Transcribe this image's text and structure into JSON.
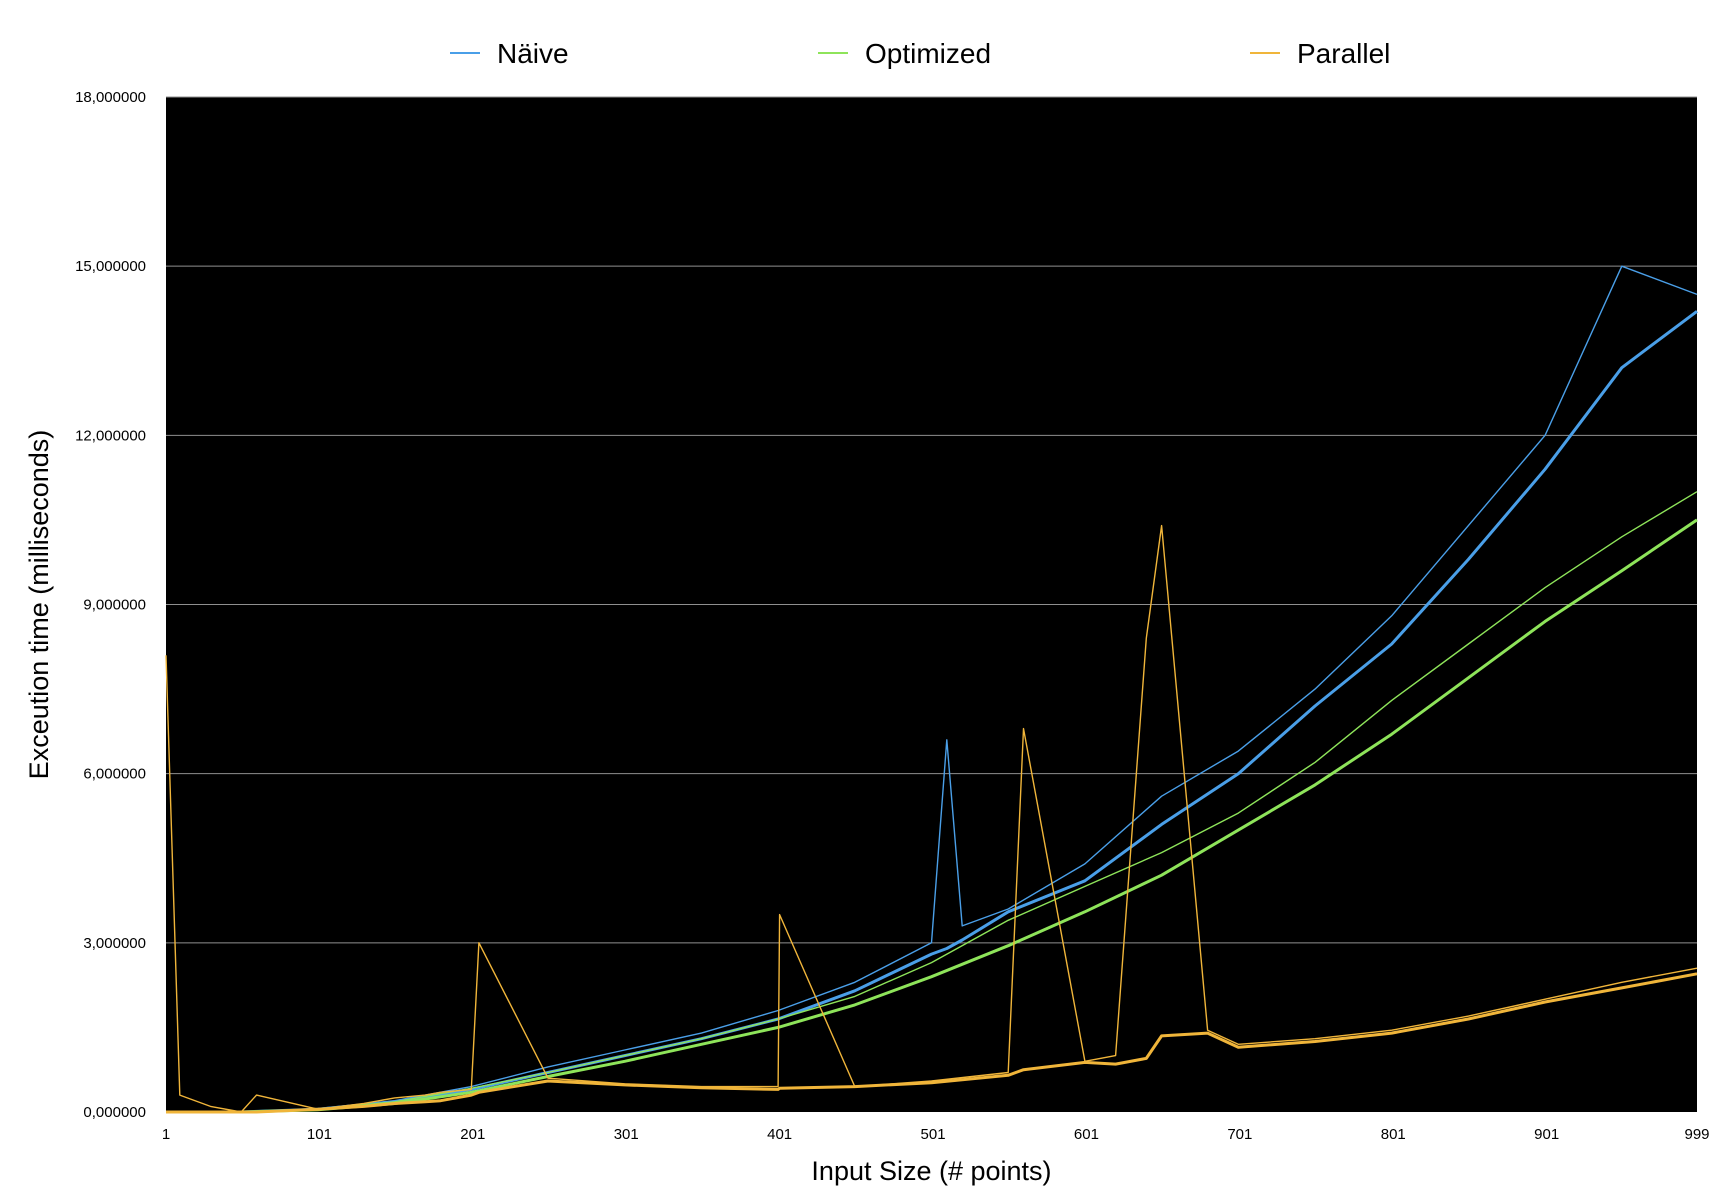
{
  "chart_data": {
    "type": "line",
    "title": "",
    "xlabel": "Input Size (# points)",
    "ylabel": "Exceution time (milliseconds)",
    "xlim": [
      1,
      999
    ],
    "ylim": [
      0,
      18000000
    ],
    "grid": true,
    "plot_background": "#000000",
    "legend_position": "top",
    "x_tick_labels": [
      "1",
      "101",
      "201",
      "301",
      "401",
      "501",
      "601",
      "701",
      "801",
      "901",
      "999"
    ],
    "x_tick_values": [
      1,
      101,
      201,
      301,
      401,
      501,
      601,
      701,
      801,
      901,
      999
    ],
    "y_tick_labels": [
      "0,000000",
      "3,000000",
      "6,000000",
      "9,000000",
      "12,000000",
      "15,000000",
      "18,000000"
    ],
    "y_tick_values": [
      0,
      3000000,
      6000000,
      9000000,
      12000000,
      15000000,
      18000000
    ],
    "series": [
      {
        "name": "Näive",
        "color": "#4a9fe8",
        "x": [
          1,
          50,
          100,
          150,
          200,
          250,
          300,
          350,
          400,
          450,
          500,
          510,
          520,
          550,
          600,
          650,
          700,
          750,
          800,
          850,
          900,
          950,
          999
        ],
        "raw": [
          0,
          0,
          60000,
          200000,
          450000,
          800000,
          1100000,
          1400000,
          1800000,
          2300000,
          3000000,
          6600000,
          3300000,
          3600000,
          4400000,
          5600000,
          6400000,
          7500000,
          8800000,
          10400000,
          12000000,
          15000000,
          14500000
        ],
        "trend": [
          0,
          0,
          50000,
          180000,
          400000,
          700000,
          1000000,
          1300000,
          1650000,
          2150000,
          2800000,
          2900000,
          3050000,
          3550000,
          4100000,
          5100000,
          6000000,
          7200000,
          8300000,
          9800000,
          11400000,
          13200000,
          14200000
        ]
      },
      {
        "name": "Optimized",
        "color": "#8ee45a",
        "x": [
          1,
          50,
          100,
          150,
          200,
          250,
          300,
          350,
          400,
          450,
          500,
          550,
          600,
          650,
          700,
          750,
          800,
          850,
          900,
          950,
          999
        ],
        "raw": [
          0,
          0,
          50000,
          180000,
          420000,
          700000,
          1000000,
          1300000,
          1650000,
          2050000,
          2650000,
          3400000,
          4000000,
          4600000,
          5300000,
          6200000,
          7300000,
          8300000,
          9300000,
          10200000,
          11000000
        ],
        "trend": [
          0,
          0,
          40000,
          150000,
          350000,
          630000,
          900000,
          1200000,
          1500000,
          1900000,
          2400000,
          2950000,
          3550000,
          4200000,
          5000000,
          5800000,
          6700000,
          7700000,
          8700000,
          9600000,
          10500000
        ]
      },
      {
        "name": "Parallel",
        "color": "#f0b53a",
        "x": [
          1,
          10,
          30,
          50,
          60,
          100,
          130,
          150,
          170,
          180,
          200,
          205,
          250,
          300,
          350,
          400,
          401,
          450,
          500,
          550,
          560,
          600,
          620,
          640,
          650,
          680,
          700,
          750,
          800,
          850,
          900,
          950,
          999
        ],
        "raw": [
          8100000,
          300000,
          100000,
          0,
          300000,
          50000,
          150000,
          250000,
          300000,
          350000,
          400000,
          3000000,
          600000,
          500000,
          450000,
          450000,
          3500000,
          450000,
          550000,
          700000,
          6800000,
          900000,
          1000000,
          8400000,
          10400000,
          1450000,
          1200000,
          1300000,
          1450000,
          1700000,
          2000000,
          2300000,
          2550000
        ],
        "trend": [
          0,
          0,
          0,
          0,
          0,
          50000,
          100000,
          150000,
          180000,
          200000,
          300000,
          350000,
          550000,
          480000,
          430000,
          400000,
          420000,
          450000,
          520000,
          650000,
          750000,
          880000,
          850000,
          950000,
          1350000,
          1400000,
          1150000,
          1250000,
          1400000,
          1650000,
          1950000,
          2200000,
          2450000
        ]
      }
    ]
  }
}
